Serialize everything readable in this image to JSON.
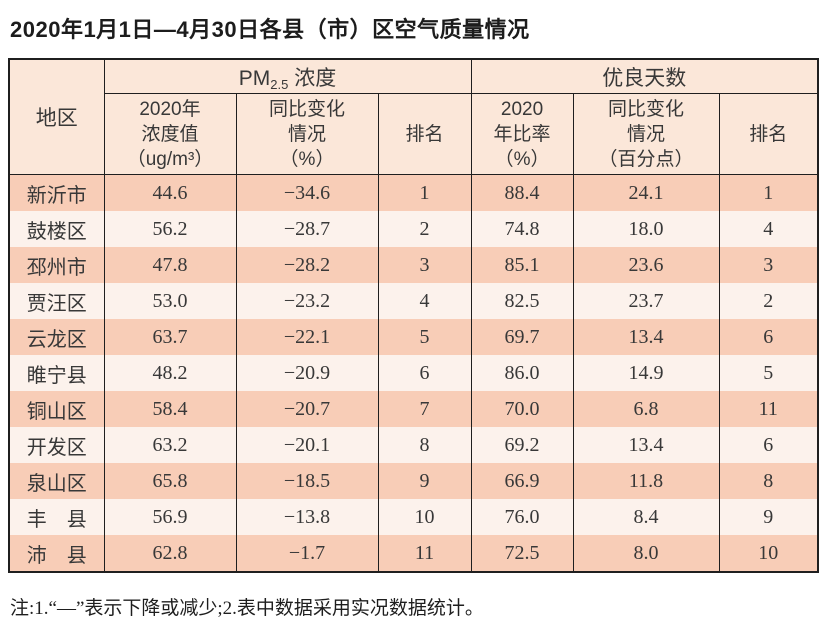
{
  "title": "2020年1月1日—4月30日各县（市）区空气质量情况",
  "note": "注:1.“—”表示下降或减少;2.表中数据采用实况数据统计。",
  "colors": {
    "row_odd": "#f8cdb7",
    "row_even": "#fcf2ec",
    "header_bg": "#fbe7d9",
    "border": "#1f1f1f"
  },
  "table": {
    "group_headers": {
      "pm": {
        "prefix": "PM",
        "sub": "2.5",
        "suffix": " 浓度"
      },
      "good": "优良天数"
    },
    "sub_headers": {
      "region": "地区",
      "pm_value": "2020年\n浓度值\n（ug/m³）",
      "pm_change": "同比变化\n情况\n（%）",
      "pm_rank": "排名",
      "good_ratio": "2020\n年比率\n（%）",
      "good_change": "同比变化\n情况\n（百分点）",
      "good_rank": "排名"
    }
  },
  "chart_data": {
    "type": "table",
    "title": "2020年1月1日—4月30日各县（市）区空气质量情况",
    "column_groups": [
      "PM2.5浓度",
      "优良天数"
    ],
    "columns": [
      "地区",
      "2020年浓度值（ug/m³）",
      "同比变化情况（%）",
      "排名",
      "2020年比率（%）",
      "同比变化情况（百分点）",
      "排名"
    ],
    "rows": [
      [
        "新沂市",
        "44.6",
        "−34.6",
        "1",
        "88.4",
        "24.1",
        "1"
      ],
      [
        "鼓楼区",
        "56.2",
        "−28.7",
        "2",
        "74.8",
        "18.0",
        "4"
      ],
      [
        "邳州市",
        "47.8",
        "−28.2",
        "3",
        "85.1",
        "23.6",
        "3"
      ],
      [
        "贾汪区",
        "53.0",
        "−23.2",
        "4",
        "82.5",
        "23.7",
        "2"
      ],
      [
        "云龙区",
        "63.7",
        "−22.1",
        "5",
        "69.7",
        "13.4",
        "6"
      ],
      [
        "睢宁县",
        "48.2",
        "−20.9",
        "6",
        "86.0",
        "14.9",
        "5"
      ],
      [
        "铜山区",
        "58.4",
        "−20.7",
        "7",
        "70.0",
        "6.8",
        "11"
      ],
      [
        "开发区",
        "63.2",
        "−20.1",
        "8",
        "69.2",
        "13.4",
        "6"
      ],
      [
        "泉山区",
        "65.8",
        "−18.5",
        "9",
        "66.9",
        "11.8",
        "8"
      ],
      [
        "丰　县",
        "56.9",
        "−13.8",
        "10",
        "76.0",
        "8.4",
        "9"
      ],
      [
        "沛　县",
        "62.8",
        "−1.7",
        "11",
        "72.5",
        "8.0",
        "10"
      ]
    ]
  }
}
